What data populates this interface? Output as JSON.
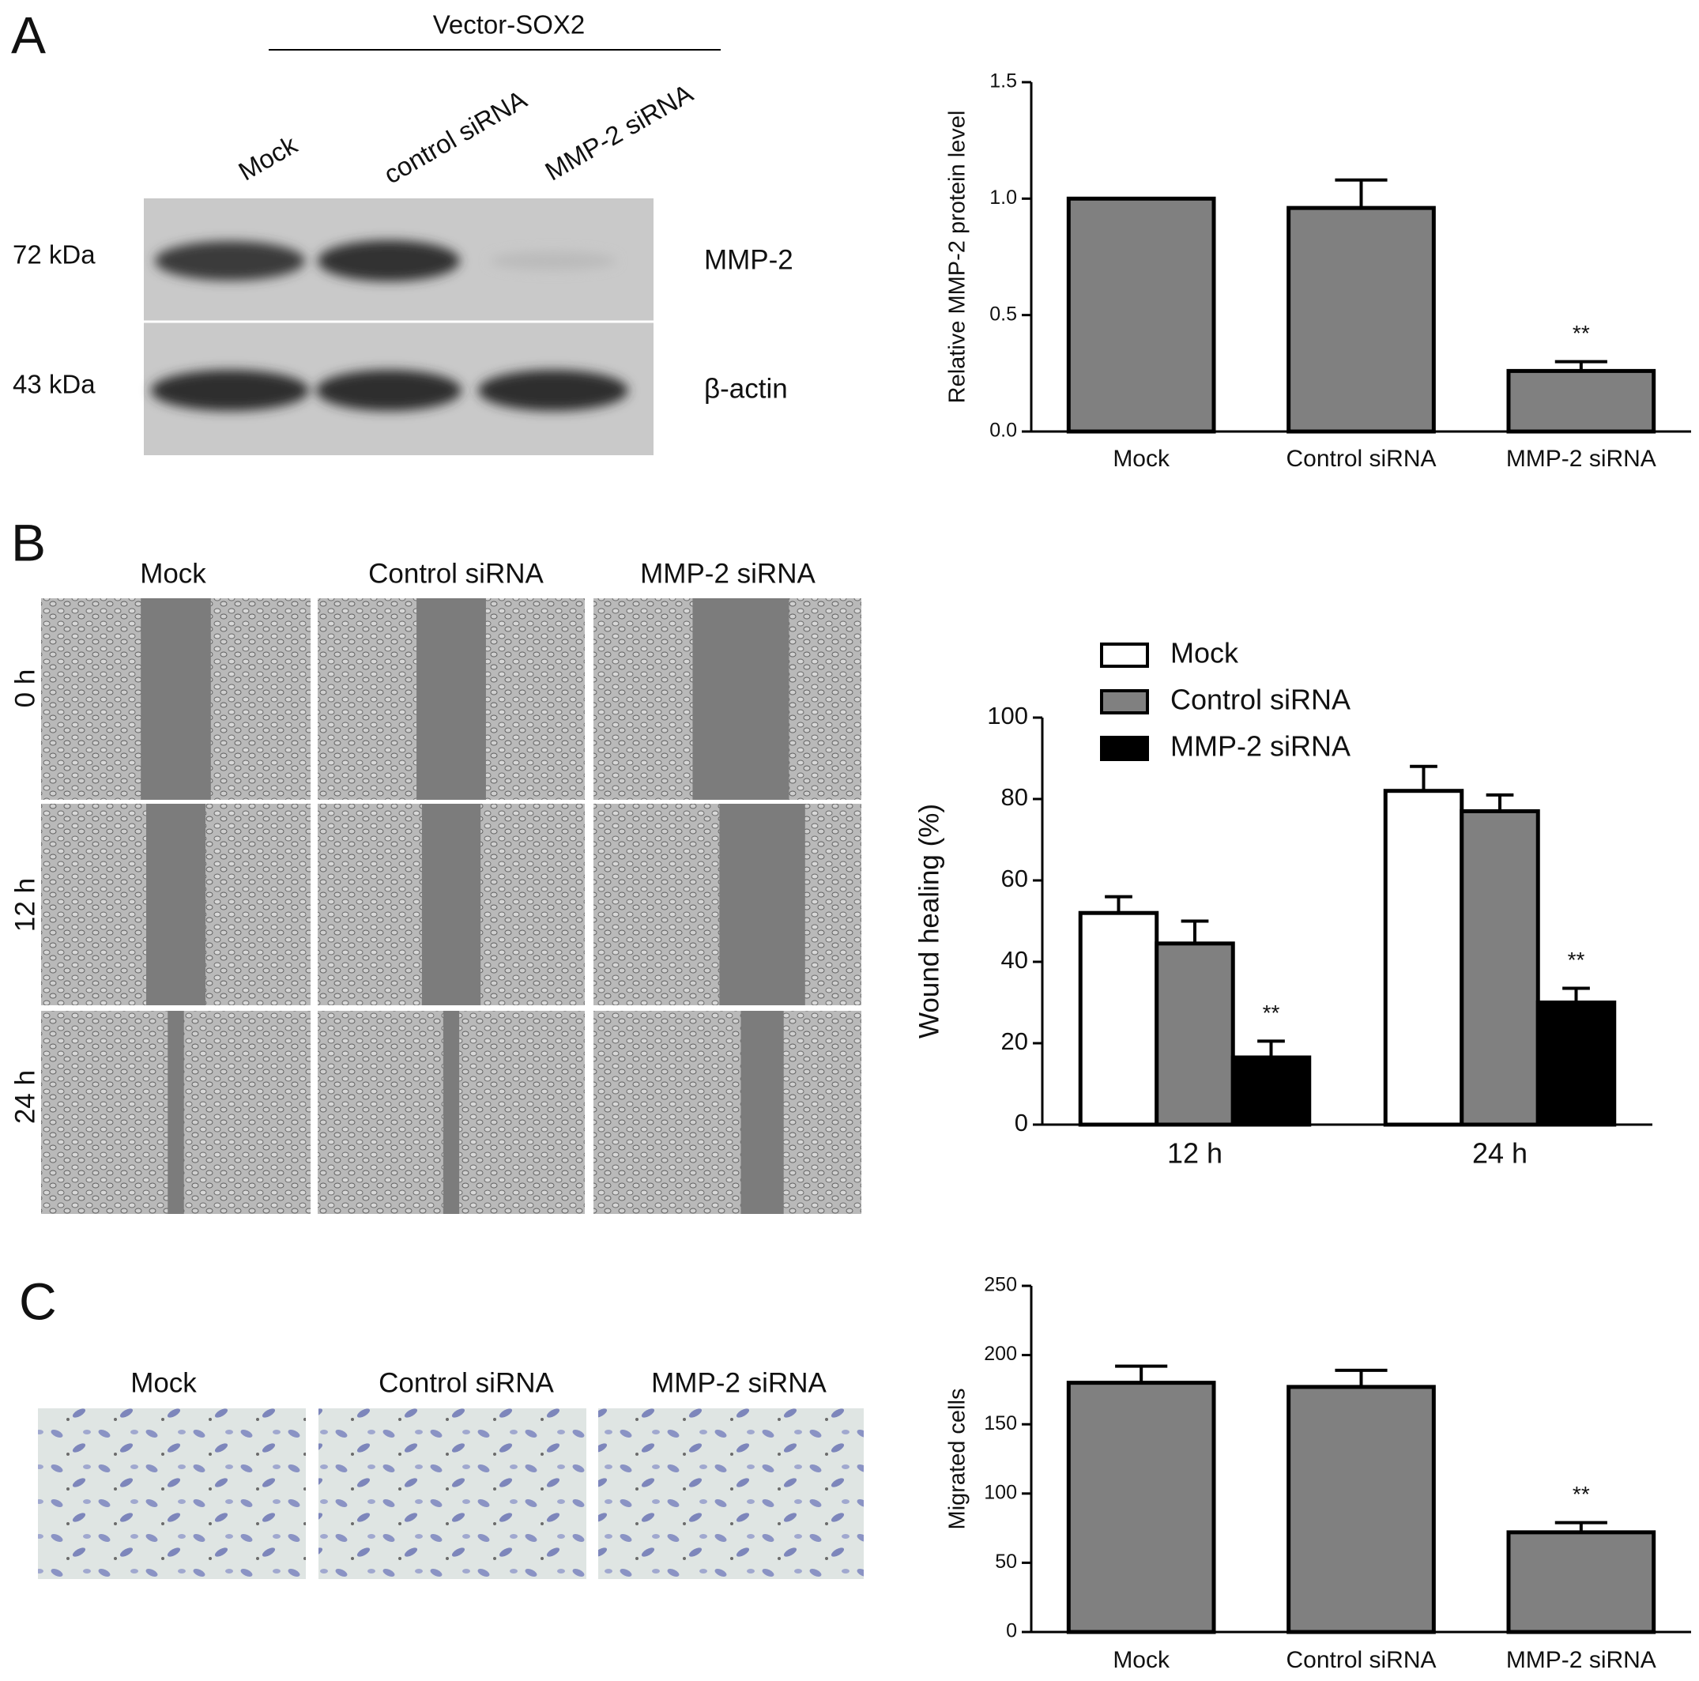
{
  "panel_labels": [
    "A",
    "B",
    "C"
  ],
  "blot": {
    "header": "Vector-SOX2",
    "lanes": [
      "Mock",
      "control siRNA",
      "MMP-2 siRNA"
    ],
    "bands": [
      {
        "size": "72 kDa",
        "protein": "MMP-2"
      },
      {
        "size": "43 kDa",
        "protein": "β-actin"
      }
    ]
  },
  "wound_images": {
    "columns": [
      "Mock",
      "Control siRNA",
      "MMP-2 siRNA"
    ],
    "rows": [
      "0 h",
      "12 h",
      "24 h"
    ]
  },
  "transwell_images": {
    "columns": [
      "Mock",
      "Control siRNA",
      "MMP-2 siRNA"
    ]
  },
  "chart_data": [
    {
      "type": "bar",
      "ylabel": "Relative MMP-2 protein level",
      "categories": [
        "Mock",
        "Control siRNA",
        "MMP-2 siRNA"
      ],
      "values": [
        1.0,
        0.96,
        0.26
      ],
      "errors": [
        0,
        0.12,
        0.04
      ],
      "significance": [
        null,
        null,
        "**"
      ],
      "color": "#808080",
      "ylim": [
        0,
        1.5
      ],
      "yticks": [
        {
          "value": 0,
          "label": "0.0"
        },
        0.5,
        {
          "value": 1,
          "label": "1.0"
        },
        1.5
      ]
    },
    {
      "type": "bar",
      "ylabel": "Wound healing (%)",
      "categories": [
        "12 h",
        "24 h"
      ],
      "series": [
        {
          "name": "Mock",
          "color": "#ffffff",
          "values": [
            52,
            82
          ],
          "errors": [
            4,
            6
          ]
        },
        {
          "name": "Control siRNA",
          "color": "#808080",
          "values": [
            44.5,
            77
          ],
          "errors": [
            5.5,
            4
          ]
        },
        {
          "name": "MMP-2 siRNA",
          "color": "#000000",
          "values": [
            16.5,
            30
          ],
          "errors": [
            4,
            3.5
          ],
          "significance": [
            "**",
            "**"
          ]
        }
      ],
      "ylim": [
        0,
        100
      ],
      "yticks": [
        0,
        20,
        40,
        60,
        80,
        100
      ],
      "legend": "top-left"
    },
    {
      "type": "bar",
      "ylabel": "Migrated cells",
      "categories": [
        "Mock",
        "Control siRNA",
        "MMP-2 siRNA"
      ],
      "values": [
        180,
        177,
        72
      ],
      "errors": [
        12,
        12,
        7
      ],
      "significance": [
        null,
        null,
        "**"
      ],
      "color": "#808080",
      "ylim": [
        0,
        250
      ],
      "yticks": [
        0,
        50,
        100,
        150,
        200,
        250
      ]
    }
  ]
}
